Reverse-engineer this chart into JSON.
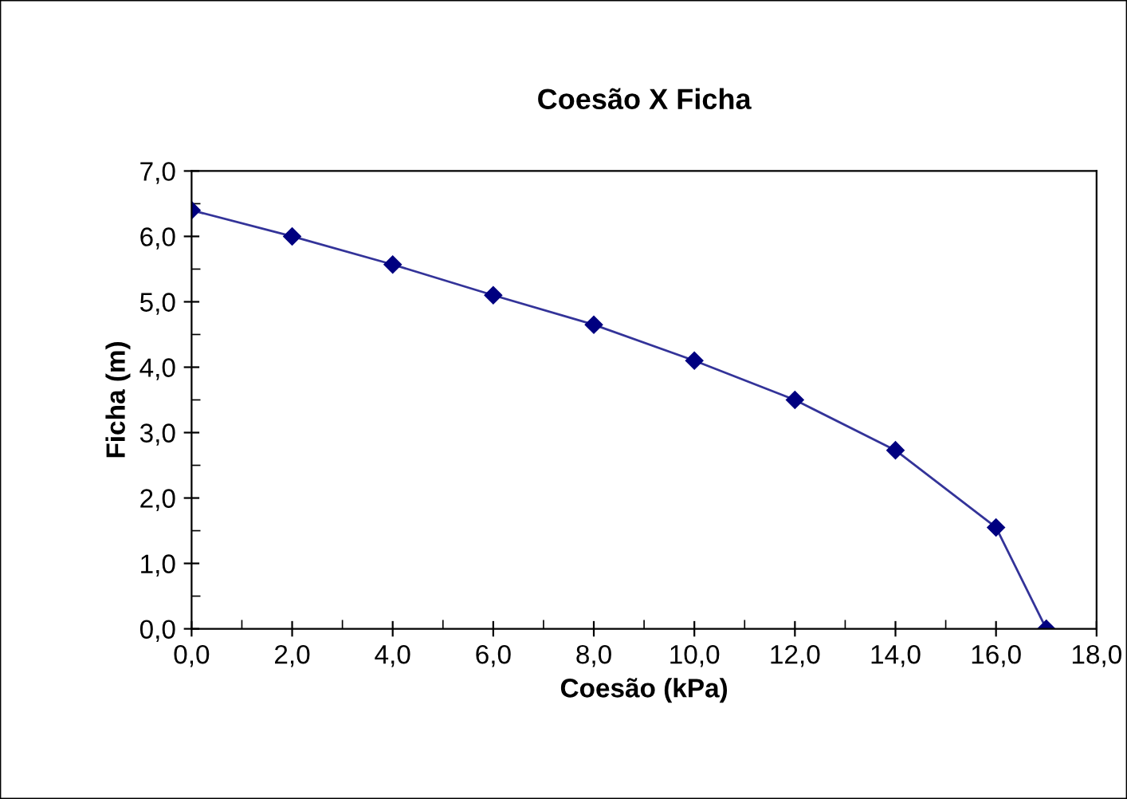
{
  "chart_data": {
    "type": "line",
    "title": "Coesão X Ficha",
    "xlabel": "Coesão (kPa)",
    "ylabel": "Ficha (m)",
    "x": [
      0,
      2,
      4,
      6,
      8,
      10,
      12,
      14,
      16,
      17
    ],
    "series": [
      {
        "color": "#000080",
        "values": [
          6.4,
          6.0,
          5.57,
          5.1,
          4.65,
          4.1,
          3.5,
          2.73,
          1.55,
          0
        ]
      }
    ],
    "marker": "diamond",
    "line_style": "solid",
    "grid": false,
    "legend": false,
    "xlim": [
      0,
      18
    ],
    "xticks": [
      {
        "value": 0,
        "label": "0,0"
      },
      {
        "value": 2,
        "label": "2,0"
      },
      {
        "value": 4,
        "label": "4,0"
      },
      {
        "value": 6,
        "label": "6,0"
      },
      {
        "value": 8,
        "label": "8,0"
      },
      {
        "value": 10,
        "label": "10,0"
      },
      {
        "value": 12,
        "label": "12,0"
      },
      {
        "value": 14,
        "label": "14,0"
      },
      {
        "value": 16,
        "label": "16,0"
      },
      {
        "value": 18,
        "label": "18,0"
      }
    ],
    "ylim": [
      0,
      7
    ],
    "yticks": [
      {
        "value": 0,
        "label": "0,0"
      },
      {
        "value": 1,
        "label": "1,0"
      },
      {
        "value": 2,
        "label": "2,0"
      },
      {
        "value": 3,
        "label": "3,0"
      },
      {
        "value": 4,
        "label": "4,0"
      },
      {
        "value": 5,
        "label": "5,0"
      },
      {
        "value": 6,
        "label": "6,0"
      },
      {
        "value": 7,
        "label": "7,0"
      }
    ]
  }
}
